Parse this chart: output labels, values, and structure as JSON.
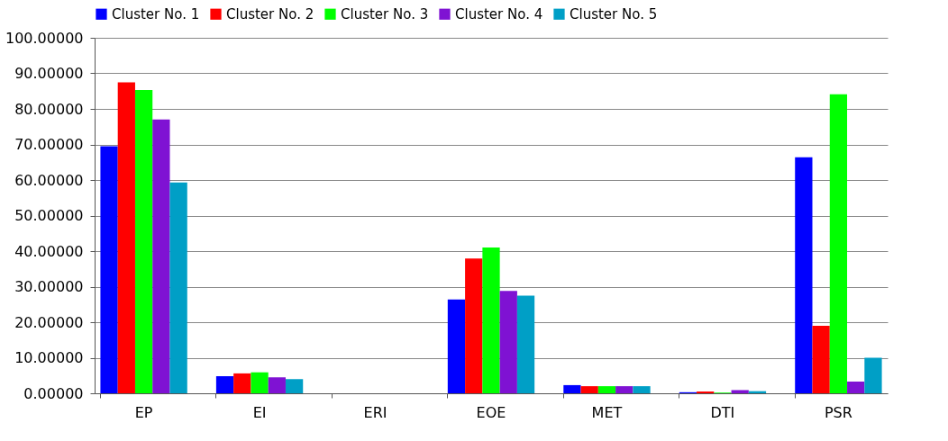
{
  "chart_data": {
    "type": "bar",
    "categories": [
      "EP",
      "EI",
      "ERI",
      "EOE",
      "MET",
      "DTI",
      "PSR"
    ],
    "series": [
      {
        "name": "Cluster No. 1",
        "color": "#0000ff",
        "values": [
          69.5,
          4.8,
          0,
          26.4,
          2.3,
          0.3,
          66.4
        ]
      },
      {
        "name": "Cluster No. 2",
        "color": "#ff0000",
        "values": [
          87.5,
          5.6,
          0,
          37.9,
          2.0,
          0.5,
          19.0
        ]
      },
      {
        "name": "Cluster No. 3",
        "color": "#00ff00",
        "values": [
          85.3,
          5.9,
          0,
          41.0,
          2.0,
          0.2,
          84.1
        ]
      },
      {
        "name": "Cluster No. 4",
        "color": "#7f12d3",
        "values": [
          77.0,
          4.5,
          0,
          28.8,
          2.0,
          0.9,
          3.3
        ]
      },
      {
        "name": "Cluster No. 5",
        "color": "#009fc6",
        "values": [
          59.3,
          4.0,
          0,
          27.5,
          2.0,
          0.6,
          10.0
        ]
      }
    ],
    "ylim": [
      0,
      100
    ],
    "yticks": [
      {
        "value": 0,
        "label": "0.00000"
      },
      {
        "value": 10,
        "label": "10.00000"
      },
      {
        "value": 20,
        "label": "20.00000"
      },
      {
        "value": 30,
        "label": "30.00000"
      },
      {
        "value": 40,
        "label": "40.00000"
      },
      {
        "value": 50,
        "label": "50.00000"
      },
      {
        "value": 60,
        "label": "60.00000"
      },
      {
        "value": 70,
        "label": "70.00000"
      },
      {
        "value": 80,
        "label": "80.00000"
      },
      {
        "value": 90,
        "label": "90.00000"
      },
      {
        "value": 100,
        "label": "100.00000"
      }
    ],
    "grid": "y",
    "legend": "top"
  }
}
